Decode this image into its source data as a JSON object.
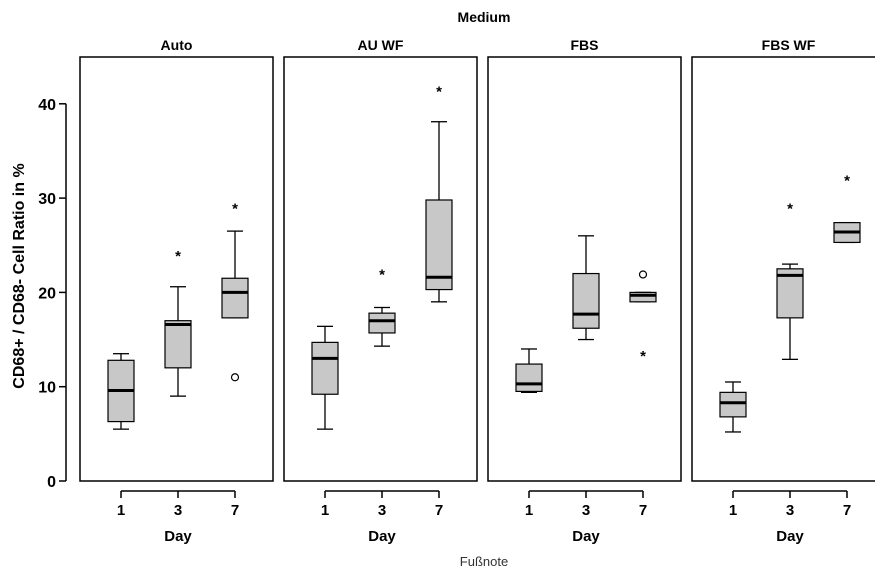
{
  "chart_data": {
    "type": "boxplot",
    "title": "Medium",
    "ylabel": "CD68+ / CD68- Cell Ratio in %",
    "xlabel": "Day",
    "footnote": "Fußnote",
    "ylim": [
      0,
      45
    ],
    "yticks": [
      0,
      10,
      20,
      30,
      40
    ],
    "categories": [
      "1",
      "3",
      "7"
    ],
    "grid": false,
    "panels": [
      {
        "name": "Auto",
        "boxes": [
          {
            "day": "1",
            "min": 5.5,
            "q1": 6.3,
            "median": 9.6,
            "q3": 12.8,
            "max": 13.5,
            "outliers": [],
            "extremes": []
          },
          {
            "day": "3",
            "min": 9.0,
            "q1": 12.0,
            "median": 16.6,
            "q3": 17.0,
            "max": 20.6,
            "outliers": [],
            "extremes": [
              24.2
            ]
          },
          {
            "day": "7",
            "min": 17.3,
            "q1": 17.3,
            "median": 20.0,
            "q3": 21.5,
            "max": 26.5,
            "outliers": [
              11.0
            ],
            "extremes": [
              29.2
            ]
          }
        ]
      },
      {
        "name": "AU WF",
        "boxes": [
          {
            "day": "1",
            "min": 5.5,
            "q1": 9.2,
            "median": 13.0,
            "q3": 14.7,
            "max": 16.4,
            "outliers": [],
            "extremes": []
          },
          {
            "day": "3",
            "min": 14.3,
            "q1": 15.7,
            "median": 17.0,
            "q3": 17.8,
            "max": 18.4,
            "outliers": [],
            "extremes": [
              22.2
            ]
          },
          {
            "day": "7",
            "min": 19.0,
            "q1": 20.3,
            "median": 21.6,
            "q3": 29.8,
            "max": 38.1,
            "outliers": [],
            "extremes": [
              41.6
            ]
          }
        ]
      },
      {
        "name": "FBS",
        "boxes": [
          {
            "day": "1",
            "min": 9.4,
            "q1": 9.5,
            "median": 10.3,
            "q3": 12.4,
            "max": 14.0,
            "outliers": [],
            "extremes": []
          },
          {
            "day": "3",
            "min": 15.0,
            "q1": 16.2,
            "median": 17.7,
            "q3": 22.0,
            "max": 26.0,
            "outliers": [],
            "extremes": []
          },
          {
            "day": "7",
            "min": 19.0,
            "q1": 19.0,
            "median": 19.7,
            "q3": 20.0,
            "max": 20.0,
            "outliers": [
              21.9
            ],
            "extremes": [
              13.6
            ]
          }
        ]
      },
      {
        "name": "FBS WF",
        "boxes": [
          {
            "day": "1",
            "min": 5.2,
            "q1": 6.8,
            "median": 8.3,
            "q3": 9.4,
            "max": 10.5,
            "outliers": [],
            "extremes": []
          },
          {
            "day": "3",
            "min": 12.9,
            "q1": 17.3,
            "median": 21.8,
            "q3": 22.5,
            "max": 23.0,
            "outliers": [],
            "extremes": [
              29.2
            ]
          },
          {
            "day": "7",
            "min": 25.3,
            "q1": 25.3,
            "median": 26.4,
            "q3": 27.4,
            "max": 27.4,
            "outliers": [],
            "extremes": [
              32.2
            ]
          }
        ]
      }
    ]
  },
  "colors": {
    "box_fill": "#c8c8c8",
    "stroke": "#000000",
    "footnote": "#333333"
  }
}
